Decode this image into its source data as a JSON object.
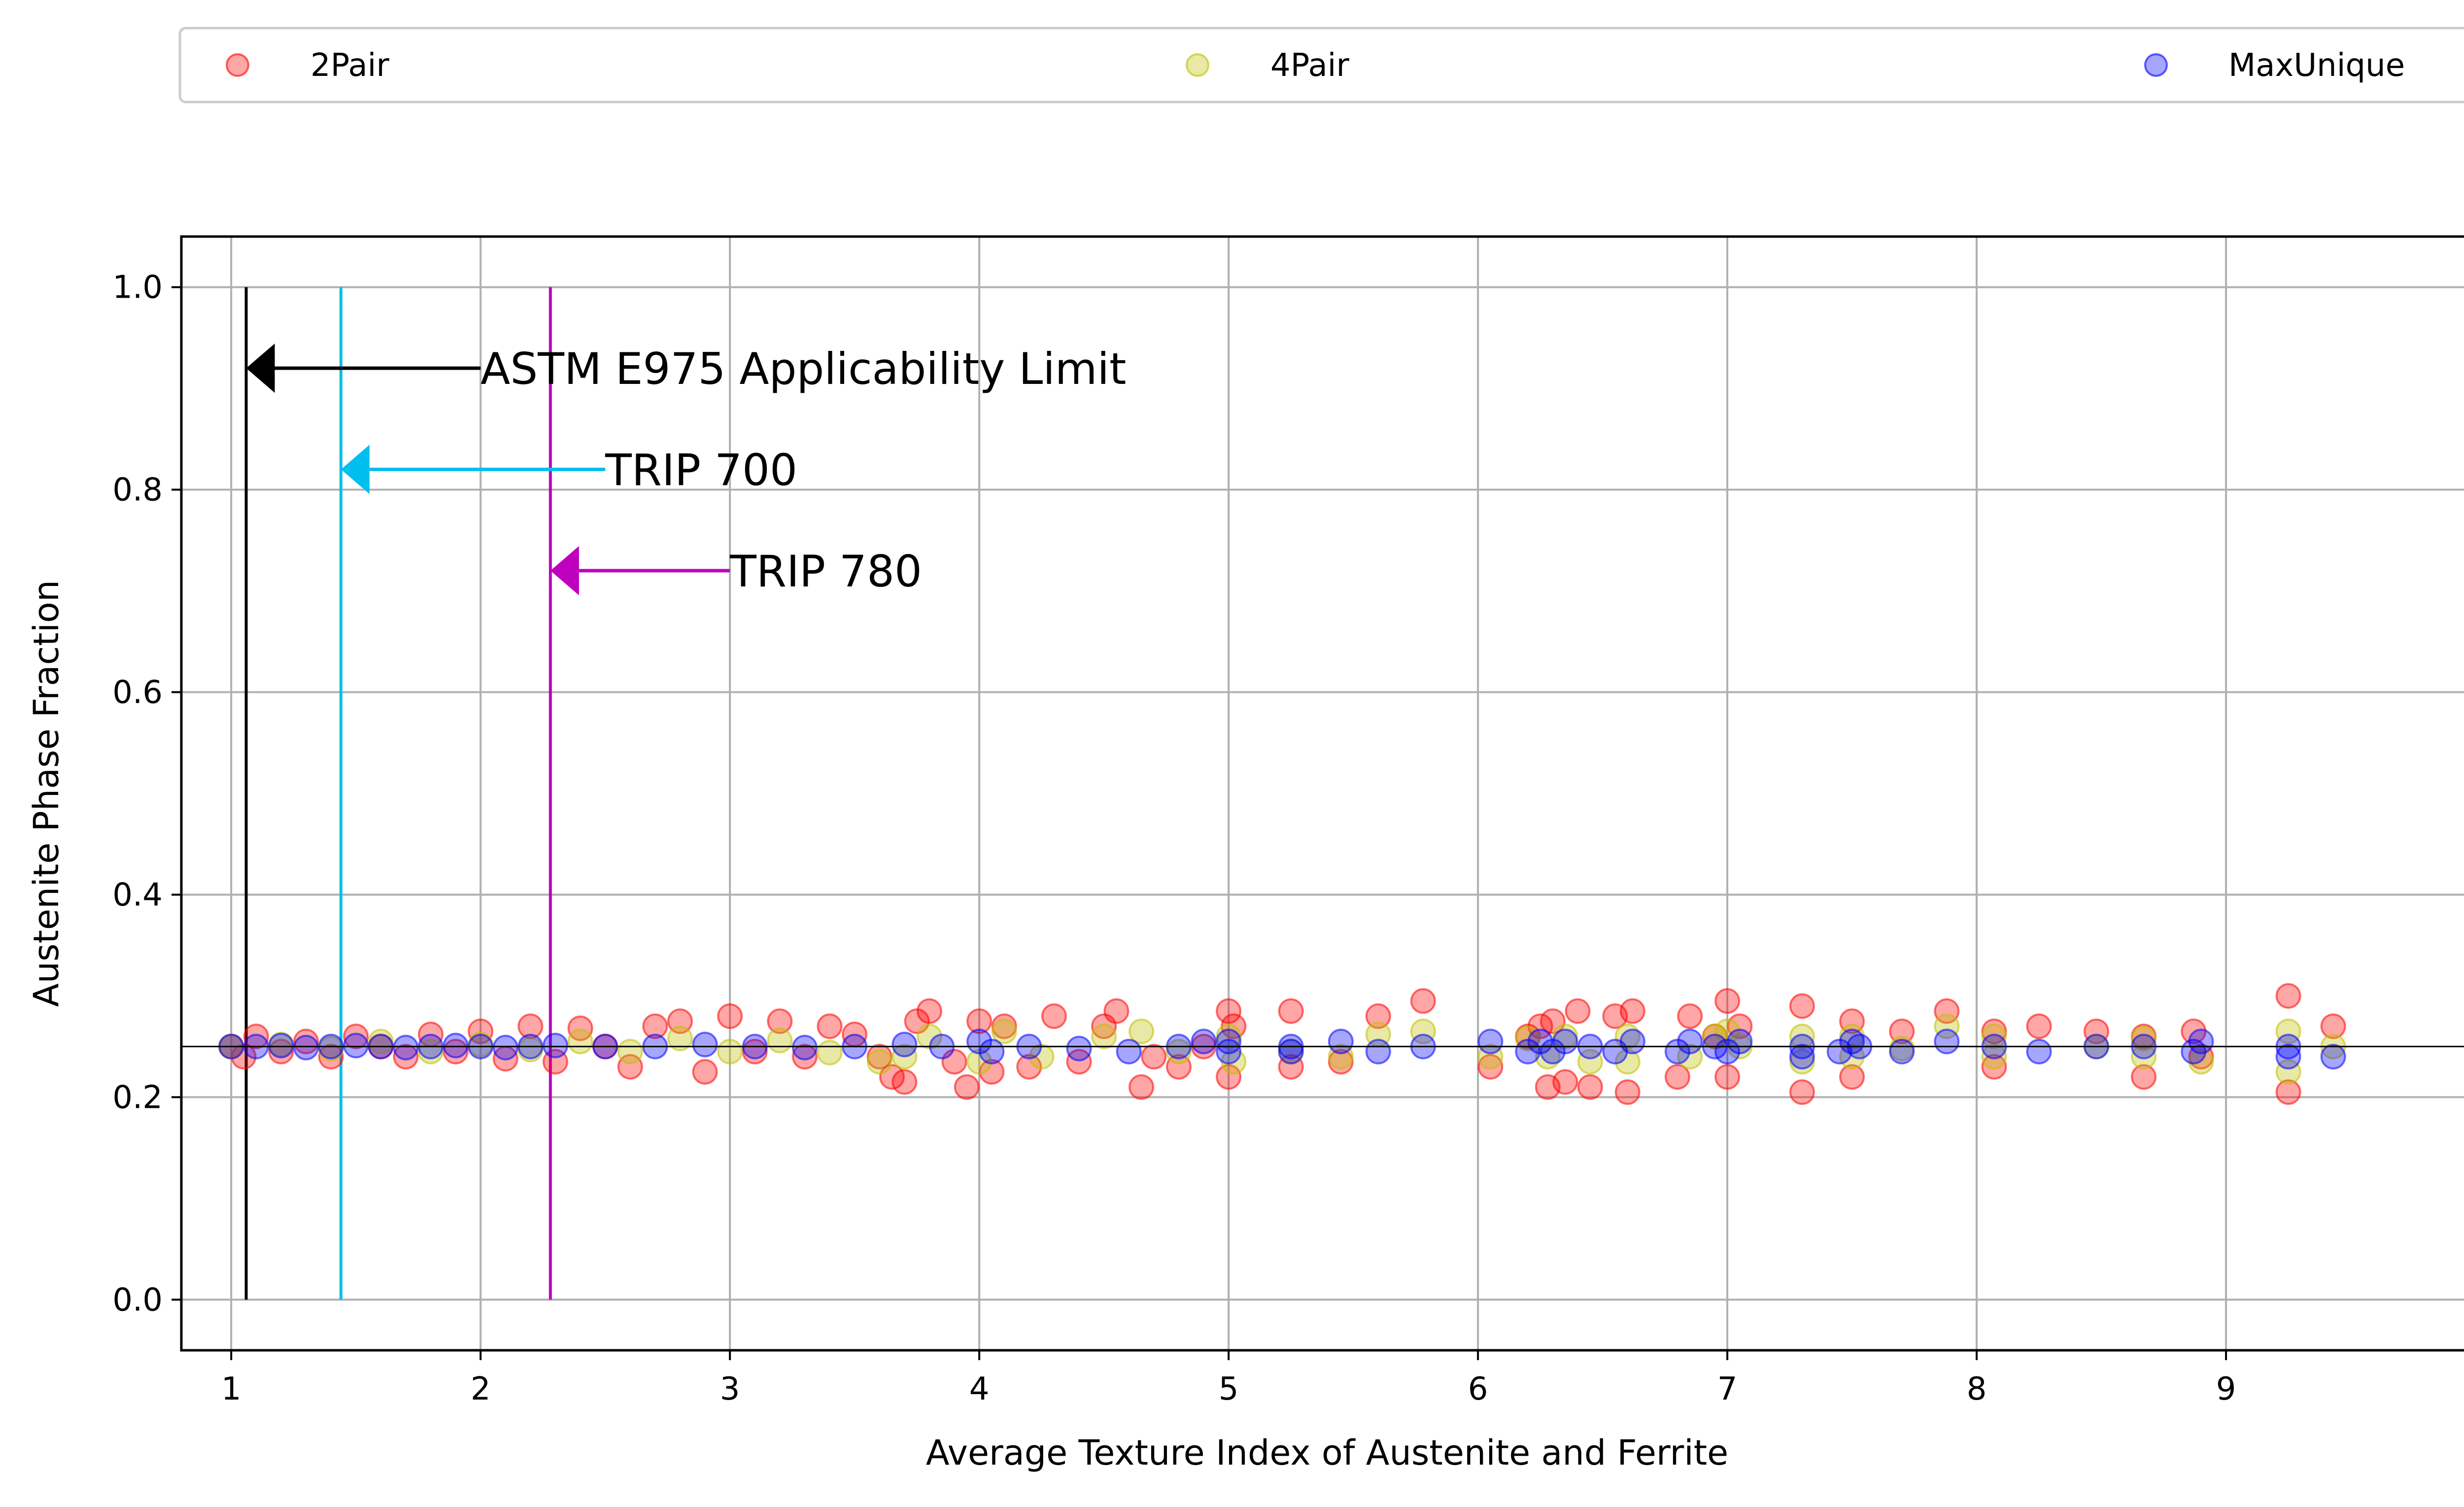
{
  "chart_data": {
    "type": "scatter",
    "title": "",
    "xlabel": "Average Texture Index of Austenite and Ferrite",
    "ylabel": "Austenite Phase Fraction",
    "xlim": [
      0.8,
      9.99
    ],
    "ylim": [
      -0.05,
      1.05
    ],
    "x_ticks": [
      1,
      2,
      3,
      4,
      5,
      6,
      7,
      8,
      9
    ],
    "y_ticks": [
      0.0,
      0.2,
      0.4,
      0.6,
      0.8,
      1.0
    ],
    "x_tick_labels": [
      "1",
      "2",
      "3",
      "4",
      "5",
      "6",
      "7",
      "8",
      "9"
    ],
    "y_tick_labels": [
      "0.0",
      "0.2",
      "0.4",
      "0.6",
      "0.8",
      "1.0"
    ],
    "grid": true,
    "legend_position": "top, above plot, spanning width",
    "reference_line": {
      "y": 0.25,
      "color": "#000000"
    },
    "series": [
      {
        "name": "2Pair",
        "color": "#ff0000",
        "alpha": 0.35,
        "points": [
          [
            1.0,
            0.25
          ],
          [
            1.05,
            0.24
          ],
          [
            1.1,
            0.26
          ],
          [
            1.2,
            0.245
          ],
          [
            1.3,
            0.255
          ],
          [
            1.4,
            0.24
          ],
          [
            1.5,
            0.26
          ],
          [
            1.6,
            0.25
          ],
          [
            1.7,
            0.24
          ],
          [
            1.8,
            0.262
          ],
          [
            1.9,
            0.245
          ],
          [
            2.0,
            0.265
          ],
          [
            2.1,
            0.238
          ],
          [
            2.2,
            0.27
          ],
          [
            2.3,
            0.235
          ],
          [
            2.4,
            0.268
          ],
          [
            2.5,
            0.25
          ],
          [
            2.6,
            0.23
          ],
          [
            2.7,
            0.27
          ],
          [
            2.8,
            0.275
          ],
          [
            2.9,
            0.225
          ],
          [
            3.0,
            0.28
          ],
          [
            3.1,
            0.245
          ],
          [
            3.2,
            0.275
          ],
          [
            3.3,
            0.24
          ],
          [
            3.4,
            0.27
          ],
          [
            3.5,
            0.262
          ],
          [
            3.6,
            0.24
          ],
          [
            3.65,
            0.22
          ],
          [
            3.7,
            0.215
          ],
          [
            3.75,
            0.275
          ],
          [
            3.8,
            0.285
          ],
          [
            3.9,
            0.235
          ],
          [
            3.95,
            0.21
          ],
          [
            4.0,
            0.275
          ],
          [
            4.05,
            0.225
          ],
          [
            4.1,
            0.27
          ],
          [
            4.2,
            0.23
          ],
          [
            4.3,
            0.28
          ],
          [
            4.4,
            0.235
          ],
          [
            4.5,
            0.27
          ],
          [
            4.55,
            0.285
          ],
          [
            4.65,
            0.21
          ],
          [
            4.7,
            0.24
          ],
          [
            4.8,
            0.23
          ],
          [
            4.9,
            0.25
          ],
          [
            5.0,
            0.285
          ],
          [
            5.0,
            0.22
          ],
          [
            5.02,
            0.27
          ],
          [
            5.25,
            0.285
          ],
          [
            5.25,
            0.23
          ],
          [
            5.45,
            0.235
          ],
          [
            5.6,
            0.28
          ],
          [
            5.78,
            0.295
          ],
          [
            6.05,
            0.23
          ],
          [
            6.2,
            0.26
          ],
          [
            6.25,
            0.27
          ],
          [
            6.28,
            0.21
          ],
          [
            6.3,
            0.275
          ],
          [
            6.35,
            0.215
          ],
          [
            6.4,
            0.285
          ],
          [
            6.45,
            0.21
          ],
          [
            6.55,
            0.28
          ],
          [
            6.6,
            0.205
          ],
          [
            6.62,
            0.285
          ],
          [
            6.8,
            0.22
          ],
          [
            6.85,
            0.28
          ],
          [
            6.95,
            0.26
          ],
          [
            7.0,
            0.295
          ],
          [
            7.0,
            0.22
          ],
          [
            7.05,
            0.27
          ],
          [
            7.3,
            0.29
          ],
          [
            7.3,
            0.205
          ],
          [
            7.5,
            0.275
          ],
          [
            7.5,
            0.22
          ],
          [
            7.7,
            0.265
          ],
          [
            7.88,
            0.285
          ],
          [
            8.07,
            0.265
          ],
          [
            8.07,
            0.23
          ],
          [
            8.25,
            0.27
          ],
          [
            8.48,
            0.265
          ],
          [
            8.67,
            0.26
          ],
          [
            8.67,
            0.22
          ],
          [
            8.87,
            0.265
          ],
          [
            8.9,
            0.24
          ],
          [
            9.25,
            0.3
          ],
          [
            9.25,
            0.205
          ],
          [
            9.43,
            0.27
          ]
        ]
      },
      {
        "name": "4Pair",
        "color": "#bfbf00",
        "alpha": 0.35,
        "points": [
          [
            1.0,
            0.25
          ],
          [
            1.2,
            0.252
          ],
          [
            1.4,
            0.248
          ],
          [
            1.6,
            0.255
          ],
          [
            1.8,
            0.245
          ],
          [
            2.0,
            0.252
          ],
          [
            2.2,
            0.247
          ],
          [
            2.4,
            0.255
          ],
          [
            2.6,
            0.245
          ],
          [
            2.8,
            0.258
          ],
          [
            3.0,
            0.245
          ],
          [
            3.2,
            0.256
          ],
          [
            3.4,
            0.244
          ],
          [
            3.6,
            0.235
          ],
          [
            3.7,
            0.24
          ],
          [
            3.8,
            0.26
          ],
          [
            4.0,
            0.235
          ],
          [
            4.1,
            0.265
          ],
          [
            4.25,
            0.24
          ],
          [
            4.5,
            0.26
          ],
          [
            4.65,
            0.265
          ],
          [
            4.8,
            0.245
          ],
          [
            5.0,
            0.26
          ],
          [
            5.02,
            0.235
          ],
          [
            5.25,
            0.245
          ],
          [
            5.45,
            0.24
          ],
          [
            5.6,
            0.262
          ],
          [
            5.78,
            0.265
          ],
          [
            6.05,
            0.24
          ],
          [
            6.2,
            0.258
          ],
          [
            6.28,
            0.24
          ],
          [
            6.35,
            0.26
          ],
          [
            6.45,
            0.235
          ],
          [
            6.6,
            0.26
          ],
          [
            6.6,
            0.235
          ],
          [
            6.85,
            0.24
          ],
          [
            6.95,
            0.26
          ],
          [
            7.0,
            0.265
          ],
          [
            7.05,
            0.25
          ],
          [
            7.3,
            0.26
          ],
          [
            7.3,
            0.235
          ],
          [
            7.5,
            0.26
          ],
          [
            7.5,
            0.24
          ],
          [
            7.7,
            0.248
          ],
          [
            7.88,
            0.27
          ],
          [
            8.07,
            0.26
          ],
          [
            8.07,
            0.24
          ],
          [
            8.48,
            0.25
          ],
          [
            8.67,
            0.258
          ],
          [
            8.67,
            0.24
          ],
          [
            8.9,
            0.235
          ],
          [
            9.25,
            0.265
          ],
          [
            9.25,
            0.225
          ],
          [
            9.43,
            0.25
          ]
        ]
      },
      {
        "name": "MaxUnique",
        "color": "#0000ff",
        "alpha": 0.35,
        "points": [
          [
            1.0,
            0.25
          ],
          [
            1.1,
            0.25
          ],
          [
            1.2,
            0.251
          ],
          [
            1.3,
            0.249
          ],
          [
            1.4,
            0.25
          ],
          [
            1.5,
            0.251
          ],
          [
            1.6,
            0.25
          ],
          [
            1.7,
            0.249
          ],
          [
            1.8,
            0.25
          ],
          [
            1.9,
            0.251
          ],
          [
            2.0,
            0.25
          ],
          [
            2.1,
            0.249
          ],
          [
            2.2,
            0.25
          ],
          [
            2.3,
            0.251
          ],
          [
            2.5,
            0.25
          ],
          [
            2.7,
            0.25
          ],
          [
            2.9,
            0.252
          ],
          [
            3.1,
            0.25
          ],
          [
            3.3,
            0.249
          ],
          [
            3.5,
            0.25
          ],
          [
            3.7,
            0.252
          ],
          [
            3.85,
            0.25
          ],
          [
            4.0,
            0.255
          ],
          [
            4.05,
            0.245
          ],
          [
            4.2,
            0.25
          ],
          [
            4.4,
            0.248
          ],
          [
            4.6,
            0.245
          ],
          [
            4.8,
            0.25
          ],
          [
            4.9,
            0.255
          ],
          [
            5.0,
            0.245
          ],
          [
            5.0,
            0.255
          ],
          [
            5.25,
            0.25
          ],
          [
            5.25,
            0.245
          ],
          [
            5.45,
            0.255
          ],
          [
            5.6,
            0.245
          ],
          [
            5.78,
            0.25
          ],
          [
            6.05,
            0.255
          ],
          [
            6.2,
            0.245
          ],
          [
            6.25,
            0.255
          ],
          [
            6.3,
            0.245
          ],
          [
            6.35,
            0.255
          ],
          [
            6.45,
            0.25
          ],
          [
            6.55,
            0.245
          ],
          [
            6.62,
            0.255
          ],
          [
            6.8,
            0.245
          ],
          [
            6.85,
            0.255
          ],
          [
            6.95,
            0.25
          ],
          [
            7.0,
            0.245
          ],
          [
            7.05,
            0.255
          ],
          [
            7.3,
            0.25
          ],
          [
            7.3,
            0.24
          ],
          [
            7.45,
            0.245
          ],
          [
            7.5,
            0.255
          ],
          [
            7.53,
            0.25
          ],
          [
            7.7,
            0.245
          ],
          [
            7.88,
            0.255
          ],
          [
            8.07,
            0.25
          ],
          [
            8.25,
            0.245
          ],
          [
            8.48,
            0.25
          ],
          [
            8.67,
            0.25
          ],
          [
            8.87,
            0.245
          ],
          [
            8.9,
            0.255
          ],
          [
            9.25,
            0.25
          ],
          [
            9.25,
            0.24
          ],
          [
            9.43,
            0.24
          ]
        ]
      }
    ],
    "vertical_lines": [
      {
        "x": 1.06,
        "color": "#000000",
        "label": "ASTM E975 Applicability Limit",
        "arrow_y": 0.92,
        "text_x": 2.0
      },
      {
        "x": 1.44,
        "color": "#00bfef",
        "label": "TRIP 700",
        "arrow_y": 0.82,
        "text_x": 2.5
      },
      {
        "x": 2.28,
        "color": "#bf00bf",
        "label": "TRIP 780",
        "arrow_y": 0.72,
        "text_x": 3.0
      }
    ]
  },
  "legend": {
    "items": [
      {
        "label": "2Pair",
        "color": "#ff0000"
      },
      {
        "label": "4Pair",
        "color": "#bfbf00"
      },
      {
        "label": "MaxUnique",
        "color": "#0000ff"
      }
    ]
  }
}
